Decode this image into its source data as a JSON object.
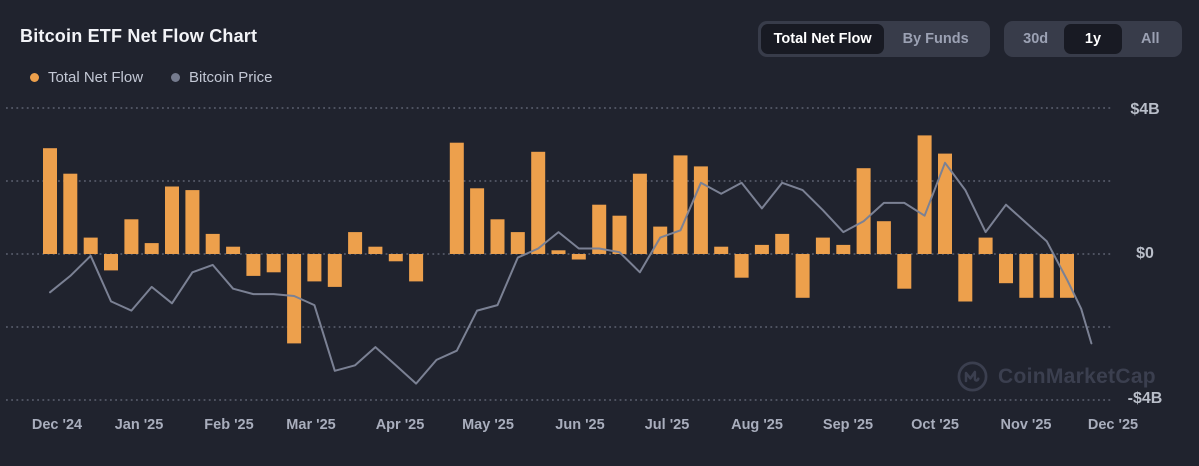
{
  "page": {
    "title": "Bitcoin ETF Net Flow Chart"
  },
  "legend": {
    "items": [
      {
        "label": "Total Net Flow",
        "color": "#EDA04C"
      },
      {
        "label": "Bitcoin Price",
        "color": "#757B8E"
      }
    ]
  },
  "controls": {
    "view_toggle": {
      "options": [
        {
          "label": "Total Net Flow",
          "active": true
        },
        {
          "label": "By Funds",
          "active": false
        }
      ]
    },
    "range_toggle": {
      "options": [
        {
          "label": "30d",
          "active": false
        },
        {
          "label": "1y",
          "active": true
        },
        {
          "label": "All",
          "active": false
        }
      ]
    }
  },
  "watermark": {
    "label": "CoinMarketCap"
  },
  "colors": {
    "background": "#20232e",
    "bar_orange": "#EDA04C",
    "price_line_gray": "#7b8194",
    "button_group_bg": "#383c4a",
    "button_active_bg": "#181a23",
    "text_primary": "#f2f3f7",
    "text_muted": "#9ba1b3"
  },
  "chart_data": {
    "type": "bar",
    "title": "Bitcoin ETF Net Flow Chart",
    "grid": "dotted horizontal gridlines every $2B",
    "legend_position": "top-left",
    "x_axis": {
      "tick_labels": [
        "Dec '24",
        "Jan '25",
        "Feb '25",
        "Mar '25",
        "Apr '25",
        "May '25",
        "Jun '25",
        "Jul '25",
        "Aug '25",
        "Sep '25",
        "Oct '25",
        "Nov '25",
        "Dec '25"
      ],
      "unit": "weekly bars, Dec 2024 through Nov 2025 (51 weeks)"
    },
    "y_axis": {
      "tick_labels": [
        "$4B",
        "$0",
        "-$4B"
      ],
      "gridlines_b": [
        4,
        2,
        0,
        -2,
        -4
      ],
      "ylim_b": [
        -4.6,
        4.6
      ],
      "position": "right"
    },
    "series": [
      {
        "name": "Total Net Flow",
        "type": "bar",
        "unit": "USD billions",
        "values": [
          2.9,
          2.2,
          0.45,
          -0.45,
          0.95,
          0.3,
          1.85,
          1.75,
          0.55,
          0.2,
          -0.6,
          -0.5,
          -2.45,
          -0.75,
          -0.9,
          0.6,
          0.2,
          -0.2,
          -0.75,
          0,
          3.05,
          1.8,
          0.95,
          0.6,
          2.8,
          0.1,
          -0.15,
          1.35,
          1.05,
          2.2,
          0.75,
          2.7,
          2.4,
          0.2,
          -0.65,
          0.25,
          0.55,
          -1.2,
          0.45,
          0.25,
          2.35,
          0.9,
          -0.95,
          3.25,
          2.75,
          -1.3,
          0.45,
          -0.8,
          -1.2,
          -1.2,
          -1.2
        ]
      },
      {
        "name": "Bitcoin Price",
        "type": "line",
        "unit": "price axis unlabeled; values are $B-axis equivalents of line height",
        "values": [
          -1.05,
          -0.6,
          -0.05,
          -1.3,
          -1.55,
          -0.9,
          -1.35,
          -0.5,
          -0.3,
          -0.95,
          -1.1,
          -1.1,
          -1.15,
          -1.4,
          -3.2,
          -3.05,
          -2.55,
          -3.05,
          -3.55,
          -2.9,
          -2.65,
          -1.55,
          -1.4,
          -0.1,
          0.15,
          0.6,
          0.15,
          0.15,
          0.05,
          -0.5,
          0.45,
          0.65,
          1.95,
          1.65,
          1.95,
          1.25,
          1.95,
          1.75,
          1.2,
          0.6,
          0.9,
          1.4,
          1.4,
          1.05,
          2.5,
          1.75,
          0.6,
          1.35,
          0.85,
          0.35,
          -0.7
        ],
        "tail_points": [
          [
            50.7,
            -1.5
          ],
          [
            51.2,
            -2.45
          ]
        ]
      }
    ]
  }
}
